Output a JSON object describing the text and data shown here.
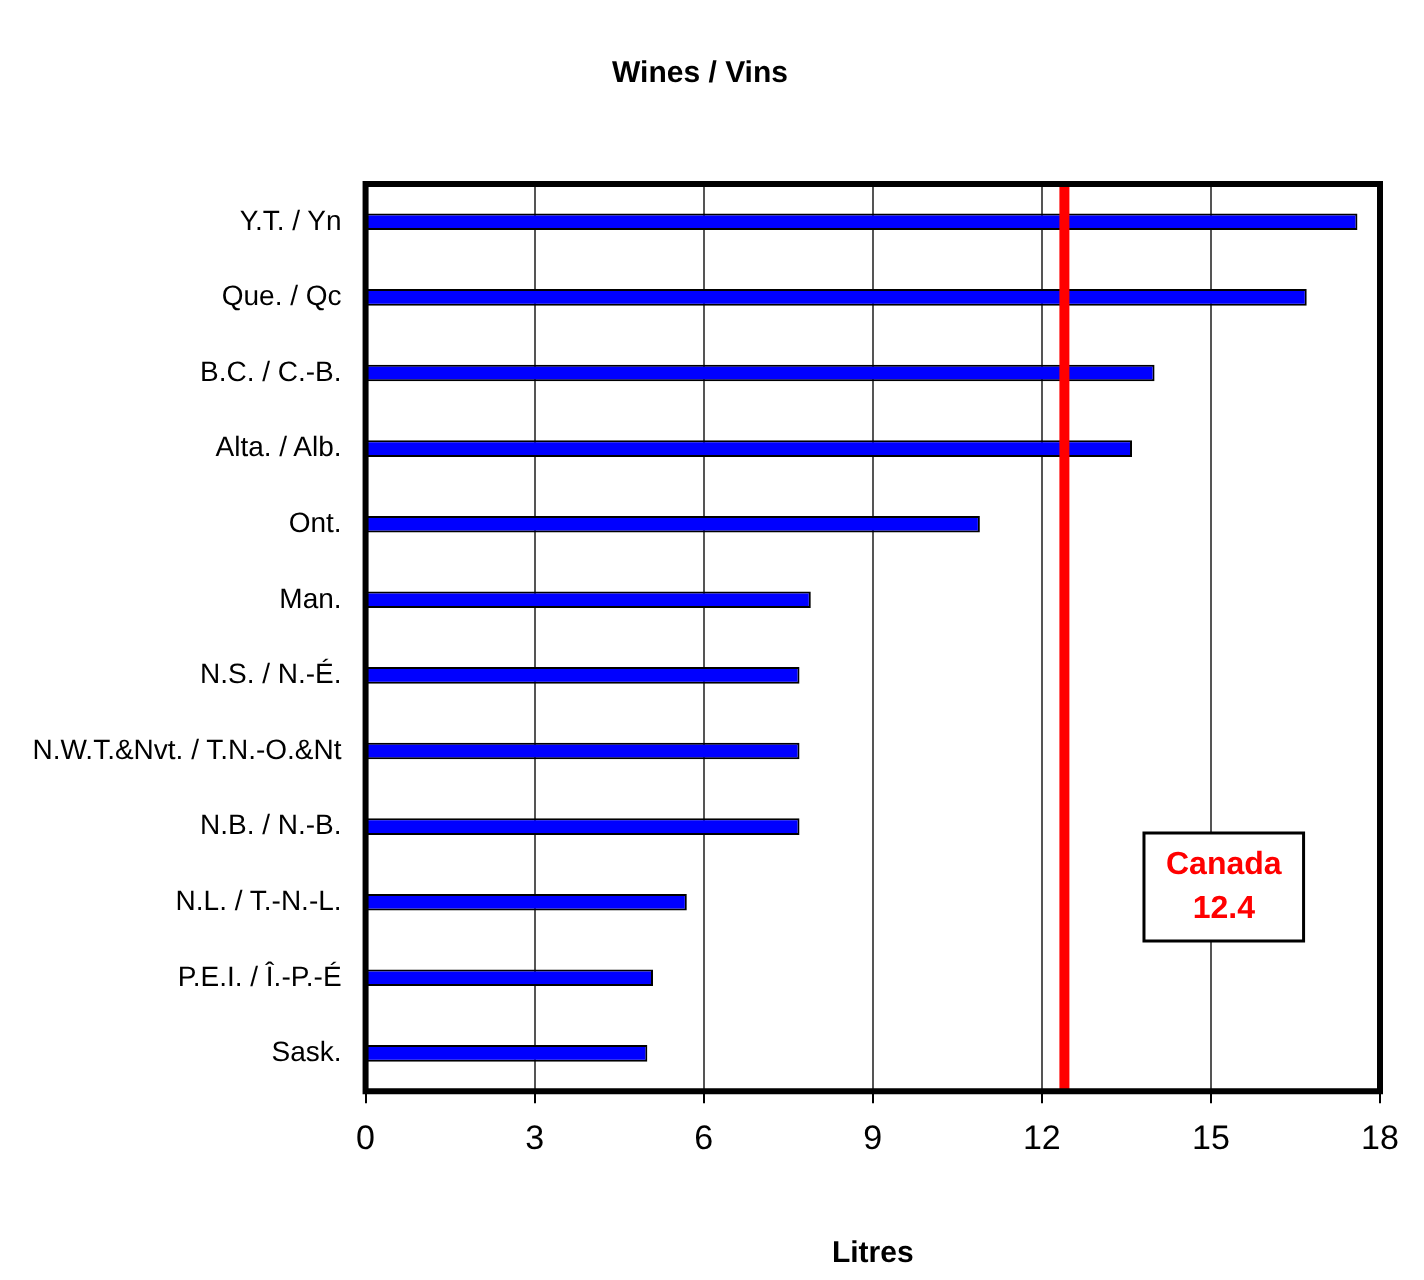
{
  "chart_data": {
    "type": "bar",
    "orientation": "horizontal",
    "title": "Wines / Vins",
    "xlabel": "Litres",
    "categories": [
      "Y.T. / Yn",
      "Que. / Qc",
      "B.C. / C.-B.",
      "Alta. / Alb.",
      "Ont.",
      "Man.",
      "N.S. / N.-É.",
      "N.W.T.&Nvt. / T.N.-O.&Nt",
      "N.B. / N.-B.",
      "N.L. / T.-N.-L.",
      "P.E.I. / Î.-P.-É",
      "Sask."
    ],
    "values": [
      17.6,
      16.7,
      14.0,
      13.6,
      10.9,
      7.9,
      7.7,
      7.7,
      7.7,
      5.7,
      5.1,
      5.0
    ],
    "color": "#0000ff",
    "xlim": [
      0,
      18
    ],
    "xticks": [
      0,
      3,
      6,
      9,
      12,
      15,
      18
    ],
    "grid": "x",
    "ref_lines": [
      {
        "axis": "x",
        "value": 12.4,
        "label": "Canada 12.4",
        "color": "#ff0000"
      }
    ]
  }
}
